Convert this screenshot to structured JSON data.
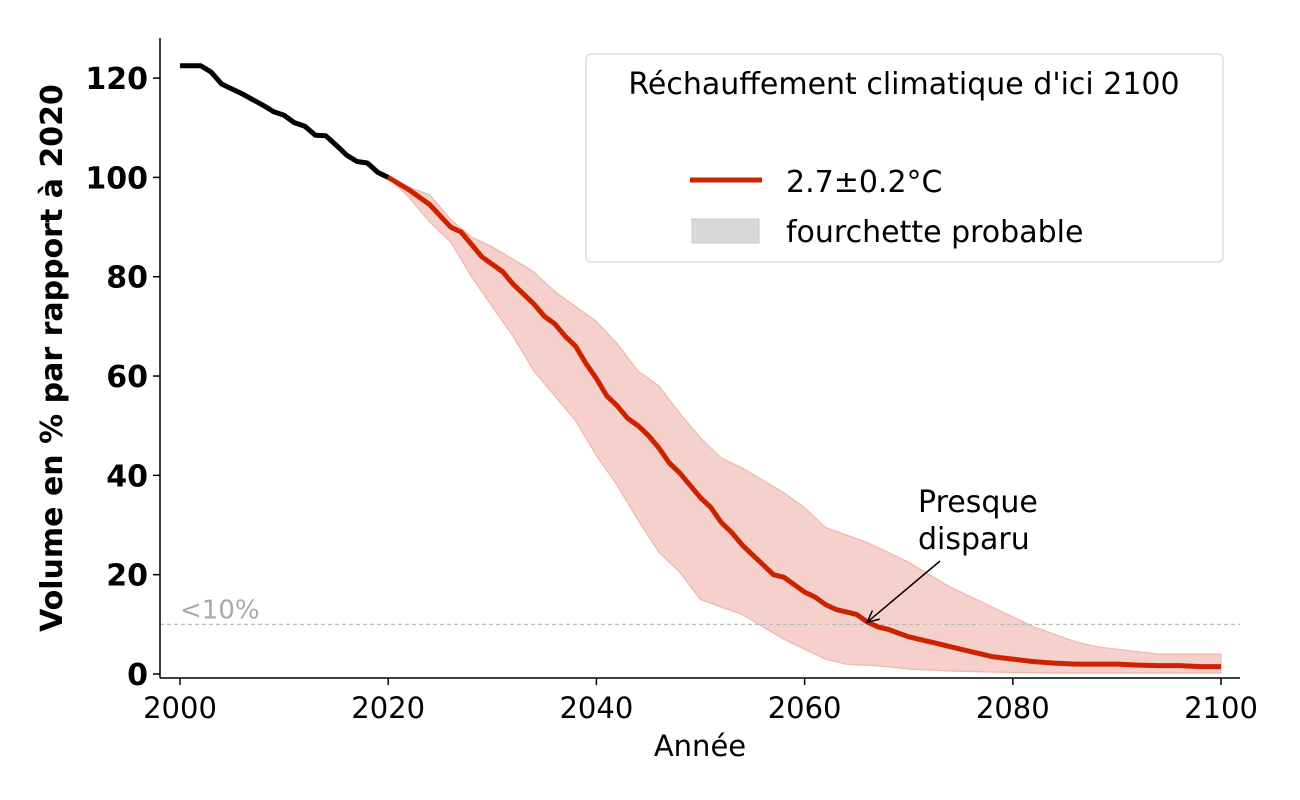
{
  "chart_data": {
    "type": "line",
    "xlabel": "Année",
    "ylabel": "Volume en % par rapport à 2020",
    "xlim": [
      2000,
      2100
    ],
    "ylim": [
      0,
      125
    ],
    "xticks": [
      2000,
      2020,
      2040,
      2060,
      2080,
      2100
    ],
    "yticks": [
      0,
      20,
      40,
      60,
      80,
      100,
      120
    ],
    "grid": false,
    "legend": {
      "title": "Réchauffement climatique d'ici 2100",
      "placement": "top-right",
      "entries": [
        {
          "label": "2.7±0.2°C",
          "kind": "line"
        },
        {
          "label": "fourchette probable",
          "kind": "band"
        }
      ]
    },
    "threshold": {
      "y": 10,
      "label": "<10%"
    },
    "annotation": {
      "lines": [
        "Presque",
        "disparu"
      ],
      "x": 2066,
      "y": 10
    },
    "colors": {
      "historical": "#000000",
      "projection": "#cc2200",
      "band": "#f6d0cb",
      "band_edge": "#f0b5ad",
      "threshold": "#bbbbbb"
    },
    "historical": {
      "x": [
        2000,
        2002,
        2003,
        2004,
        2006,
        2008,
        2009,
        2010,
        2011,
        2012,
        2013,
        2014,
        2015,
        2016,
        2017,
        2018,
        2019,
        2020
      ],
      "y": [
        122.5,
        122.5,
        121.2,
        118.8,
        116.8,
        114.5,
        113.2,
        112.5,
        111.0,
        110.3,
        108.5,
        108.4,
        106.5,
        104.5,
        103.2,
        102.9,
        101.0,
        100.0
      ]
    },
    "series": [
      {
        "x": [
          2020,
          2022,
          2024,
          2026,
          2027,
          2028,
          2029,
          2030,
          2031,
          2032,
          2033,
          2034,
          2035,
          2036,
          2037,
          2038,
          2039,
          2040,
          2041,
          2042,
          2043,
          2044,
          2045,
          2046,
          2047,
          2048,
          2049,
          2050,
          2051,
          2052,
          2053,
          2054,
          2055,
          2056,
          2057,
          2058,
          2059,
          2060,
          2061,
          2062,
          2063,
          2064,
          2065,
          2066,
          2067,
          2068,
          2070,
          2072,
          2074,
          2076,
          2078,
          2080,
          2082,
          2084,
          2086,
          2088,
          2090,
          2092,
          2094,
          2096,
          2098,
          2100
        ],
        "y": [
          100.0,
          97.5,
          94.5,
          90.0,
          89.0,
          86.5,
          84.0,
          82.5,
          81.0,
          78.5,
          76.5,
          74.5,
          72.0,
          70.5,
          68.0,
          66.0,
          62.5,
          59.5,
          56.0,
          54.0,
          51.5,
          50.0,
          48.0,
          45.5,
          42.5,
          40.5,
          38.0,
          35.5,
          33.5,
          30.5,
          28.5,
          26.0,
          24.0,
          22.0,
          20.0,
          19.5,
          18.0,
          16.5,
          15.5,
          14.0,
          13.0,
          12.5,
          12.0,
          10.5,
          9.5,
          9.0,
          7.5,
          6.5,
          5.5,
          4.5,
          3.5,
          3.0,
          2.5,
          2.2,
          2.0,
          2.0,
          2.0,
          1.8,
          1.7,
          1.7,
          1.5,
          1.5
        ]
      }
    ],
    "band": {
      "x": [
        2020,
        2022,
        2024,
        2026,
        2028,
        2030,
        2032,
        2034,
        2036,
        2038,
        2040,
        2042,
        2044,
        2046,
        2048,
        2050,
        2052,
        2054,
        2056,
        2058,
        2060,
        2062,
        2064,
        2066,
        2068,
        2070,
        2072,
        2074,
        2076,
        2078,
        2080,
        2082,
        2084,
        2086,
        2088,
        2090,
        2092,
        2094,
        2096,
        2098,
        2100
      ],
      "lower": [
        100.0,
        96.0,
        91.0,
        87.0,
        80.0,
        74.0,
        68.0,
        61.0,
        56.0,
        51.0,
        44.0,
        38.0,
        31.0,
        24.5,
        20.5,
        15.0,
        13.5,
        12.0,
        9.5,
        7.0,
        5.0,
        3.0,
        2.0,
        1.8,
        1.5,
        1.0,
        0.8,
        0.6,
        0.5,
        0.4,
        0.3,
        0.3,
        0.2,
        0.2,
        0.2,
        0.2,
        0.2,
        0.2,
        0.2,
        0.2,
        0.2
      ],
      "upper": [
        100.0,
        98.0,
        96.5,
        91.5,
        88.0,
        86.0,
        83.5,
        81.0,
        77.0,
        74.0,
        71.0,
        66.5,
        61.0,
        58.0,
        52.5,
        47.5,
        43.5,
        41.5,
        39.0,
        36.5,
        33.5,
        29.5,
        28.0,
        26.5,
        24.5,
        22.5,
        20.0,
        17.5,
        15.5,
        13.5,
        11.5,
        9.5,
        8.0,
        6.5,
        5.5,
        5.0,
        4.5,
        4.0,
        4.0,
        4.0,
        4.0
      ]
    }
  }
}
